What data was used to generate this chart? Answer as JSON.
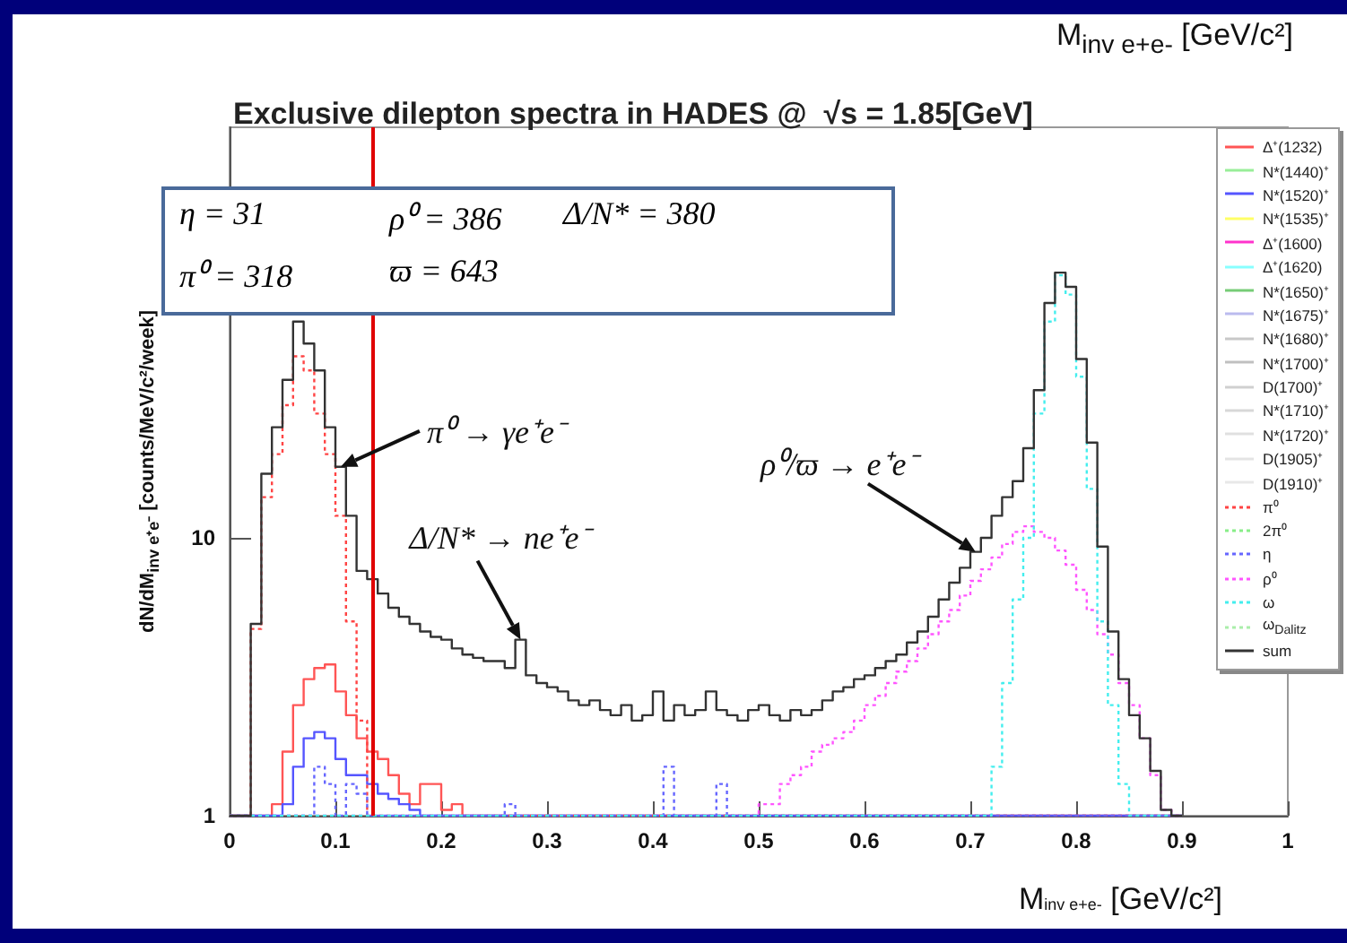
{
  "chart_data": {
    "type": "histogram",
    "title": "Exclusive dilepton spectra in HADES @  √s = 1.85[GeV]",
    "xlabel": "M$_{inv e+e-}$ [GeV/c²]",
    "ylabel": "dN/dM$_{inv e⁺e⁻}$ [counts/MeV/c²/week]",
    "xlim": [
      0,
      1
    ],
    "xticks": [
      0,
      0.1,
      0.2,
      0.3,
      0.4,
      0.5,
      0.6,
      0.7,
      0.8,
      0.9,
      1
    ],
    "ylim": [
      1,
      300
    ],
    "yticks": [
      1,
      10
    ],
    "log": "y",
    "grid": false,
    "legend": "right",
    "marker": "none",
    "bins": [
      0,
      0.01,
      0.02,
      0.03,
      0.04,
      0.05,
      0.06,
      0.07,
      0.08,
      0.09,
      0.1,
      0.11,
      0.12,
      0.13,
      0.14,
      0.15,
      0.16,
      0.17,
      0.18,
      0.19,
      0.2,
      0.21,
      0.22,
      0.23,
      0.24,
      0.25,
      0.26,
      0.27,
      0.28,
      0.29,
      0.3,
      0.31,
      0.32,
      0.33,
      0.34,
      0.35,
      0.36,
      0.37,
      0.38,
      0.39,
      0.4,
      0.41,
      0.42,
      0.43,
      0.44,
      0.45,
      0.46,
      0.47,
      0.48,
      0.49,
      0.5,
      0.51,
      0.52,
      0.53,
      0.54,
      0.55,
      0.56,
      0.57,
      0.58,
      0.59,
      0.6,
      0.61,
      0.62,
      0.63,
      0.64,
      0.65,
      0.66,
      0.67,
      0.68,
      0.69,
      0.7,
      0.71,
      0.72,
      0.73,
      0.74,
      0.75,
      0.76,
      0.77,
      0.78,
      0.79,
      0.8,
      0.81,
      0.82,
      0.83,
      0.84,
      0.85,
      0.86,
      0.87,
      0.88,
      0.89,
      0.9
    ],
    "ref_lines": [
      {
        "axis": "x",
        "value": 0.135,
        "color": "#e00000"
      }
    ],
    "annotations": [
      "η = 31",
      "ρ⁰ = 386",
      "Δ/N* = 380",
      "π⁰ = 318",
      "ϖ = 643",
      "M$_{inv e+e-}$ [GeV/c²]",
      {
        "text": "π⁰ → γe⁺e⁻",
        "x": 0.105,
        "y": 18
      },
      {
        "text": "Δ/N* → ne⁺e⁻",
        "x": 0.275,
        "y": 4.3
      },
      {
        "text": "ρ⁰/ϖ → e⁺e⁻",
        "x": 0.705,
        "y": 8.9
      }
    ],
    "series": [
      {
        "name": "Δ⁺(1232)",
        "color": "#ff5555",
        "line_style": "solid",
        "values": [
          null,
          null,
          null,
          null,
          1.1,
          1.7,
          2.5,
          3.1,
          3.4,
          3.5,
          2.8,
          2.3,
          1.9,
          1.7,
          1.6,
          1.4,
          1.2,
          1.1,
          1.3,
          1.3,
          1.05,
          1.1,
          null,
          null,
          null,
          null,
          null,
          null,
          null,
          null,
          null,
          null,
          null,
          null,
          null,
          null,
          null,
          null,
          null,
          null,
          null,
          null,
          null,
          null,
          null,
          null,
          null,
          null,
          null,
          null,
          null,
          null,
          null,
          null,
          null,
          null,
          null,
          null,
          null,
          null,
          null,
          null,
          null,
          null,
          null,
          null,
          null,
          null,
          null,
          null,
          null,
          null,
          null,
          null,
          null,
          null,
          null,
          null,
          null,
          null,
          null,
          null,
          null,
          null,
          null,
          null,
          null,
          null,
          null,
          null
        ]
      },
      {
        "name": "N*(1440)⁺",
        "color": "#99ee99",
        "line_style": "solid",
        "type": "line"
      },
      {
        "name": "N*(1520)⁺",
        "color": "#5555ff",
        "line_style": "solid",
        "values": [
          null,
          null,
          null,
          null,
          null,
          1.1,
          1.5,
          1.9,
          2.0,
          1.9,
          1.6,
          1.4,
          1.4,
          1.3,
          1.2,
          1.15,
          1.1,
          1.05,
          null,
          null,
          null,
          null,
          null,
          null,
          null,
          null,
          null,
          null,
          null,
          null,
          null,
          null,
          null,
          null,
          null,
          null,
          null,
          null,
          null,
          null,
          null,
          null,
          null,
          null,
          null,
          null,
          null,
          null,
          null,
          null,
          null,
          null,
          null,
          null,
          null,
          null,
          null,
          null,
          null,
          null,
          null,
          null,
          null,
          null,
          null,
          null,
          null,
          null,
          null,
          null,
          null,
          null,
          null,
          null,
          null,
          null,
          null,
          null,
          null,
          null,
          null,
          null,
          null,
          null,
          null,
          null,
          null,
          null,
          null,
          null
        ]
      },
      {
        "name": "N*(1535)⁺",
        "color": "#ffff66",
        "line_style": "solid",
        "type": "line"
      },
      {
        "name": "Δ⁺(1600)",
        "color": "#ff33cc",
        "line_style": "solid",
        "type": "line"
      },
      {
        "name": "Δ⁺(1620)",
        "color": "#88ffff",
        "line_style": "solid",
        "type": "line"
      },
      {
        "name": "N*(1650)⁺",
        "color": "#77cc77",
        "line_style": "solid",
        "type": "line"
      },
      {
        "name": "N*(1675)⁺",
        "color": "#bbbbee",
        "line_style": "solid",
        "type": "line"
      },
      {
        "name": "N*(1680)⁺",
        "color": "#c8c8c8",
        "line_style": "solid",
        "type": "line"
      },
      {
        "name": "N*(1700)⁺",
        "color": "#c0c0c0",
        "line_style": "solid",
        "type": "line"
      },
      {
        "name": "D(1700)⁺",
        "color": "#d0d0d0",
        "line_style": "solid",
        "type": "line"
      },
      {
        "name": "N*(1710)⁺",
        "color": "#d8d8d8",
        "line_style": "solid",
        "type": "line"
      },
      {
        "name": "N*(1720)⁺",
        "color": "#e0e0e0",
        "line_style": "solid",
        "type": "line"
      },
      {
        "name": "D(1905)⁺",
        "color": "#e4e4e4",
        "line_style": "solid",
        "type": "line"
      },
      {
        "name": "D(1910)⁺",
        "color": "#e8e8e8",
        "line_style": "solid",
        "type": "line"
      },
      {
        "name": "π⁰",
        "color": "#ff4444",
        "line_style": "dotted",
        "values": [
          null,
          null,
          4.7,
          14,
          20,
          30,
          45,
          40,
          28,
          20,
          12,
          5,
          2.2,
          null,
          null,
          null,
          null,
          null,
          null,
          null,
          null,
          null,
          null,
          null,
          null,
          null,
          null,
          null,
          null,
          null,
          null,
          null,
          null,
          null,
          null,
          null,
          null,
          null,
          null,
          null,
          null,
          null,
          null,
          null,
          null,
          null,
          null,
          null,
          null,
          null,
          null,
          null,
          null,
          null,
          null,
          null,
          null,
          null,
          null,
          null,
          null,
          null,
          null,
          null,
          null,
          null,
          null,
          null,
          null,
          null,
          null,
          null,
          null,
          null,
          null,
          null,
          null,
          null,
          null,
          null,
          null,
          null,
          null,
          null,
          null,
          null,
          null,
          null,
          null,
          null
        ]
      },
      {
        "name": "2π⁰",
        "color": "#88ee88",
        "line_style": "dotted",
        "type": "line"
      },
      {
        "name": "η",
        "color": "#6666ff",
        "line_style": "dotted",
        "values": [
          null,
          null,
          null,
          null,
          null,
          null,
          null,
          null,
          1.5,
          1.3,
          null,
          1.3,
          1.2,
          null,
          null,
          null,
          null,
          null,
          null,
          null,
          null,
          null,
          null,
          null,
          null,
          null,
          1.1,
          null,
          null,
          null,
          null,
          null,
          null,
          null,
          null,
          null,
          null,
          null,
          null,
          null,
          null,
          1.5,
          null,
          null,
          null,
          null,
          1.3,
          null,
          null,
          null,
          null,
          null,
          null,
          null,
          null,
          null,
          null,
          null,
          null,
          null,
          null,
          null,
          null,
          null,
          null,
          null,
          null,
          null,
          null,
          null,
          null,
          null,
          null,
          null,
          null,
          null,
          null,
          null,
          null,
          null,
          null,
          null,
          null,
          null,
          null,
          null,
          null,
          null,
          null,
          null
        ]
      },
      {
        "name": "ρ⁰",
        "color": "#ff55ff",
        "line_style": "dotted",
        "values": [
          null,
          null,
          null,
          null,
          null,
          null,
          null,
          null,
          null,
          null,
          null,
          null,
          null,
          null,
          null,
          null,
          null,
          null,
          null,
          null,
          null,
          null,
          null,
          null,
          null,
          null,
          null,
          null,
          null,
          null,
          null,
          null,
          null,
          null,
          null,
          null,
          null,
          null,
          null,
          null,
          null,
          null,
          null,
          null,
          null,
          null,
          null,
          null,
          null,
          1.0,
          1.1,
          1.1,
          1.3,
          1.4,
          1.5,
          1.7,
          1.8,
          1.9,
          2.0,
          2.2,
          2.5,
          2.7,
          3.0,
          3.3,
          3.6,
          4.0,
          4.5,
          5.0,
          5.5,
          6.2,
          7.0,
          7.7,
          8.5,
          9.5,
          10.5,
          11,
          10.5,
          10,
          9,
          8,
          6.5,
          5.5,
          4.5,
          3.8,
          3.0,
          2.5,
          1.9,
          1.4,
          1.05,
          null
        ]
      },
      {
        "name": "ω",
        "color": "#44eeee",
        "line_style": "dotted",
        "values": [
          null,
          null,
          null,
          null,
          null,
          null,
          null,
          null,
          null,
          null,
          null,
          null,
          null,
          null,
          null,
          null,
          null,
          null,
          null,
          null,
          null,
          null,
          null,
          null,
          null,
          null,
          null,
          null,
          null,
          null,
          null,
          null,
          null,
          null,
          null,
          null,
          null,
          null,
          null,
          null,
          null,
          null,
          null,
          null,
          null,
          null,
          null,
          null,
          null,
          null,
          null,
          null,
          null,
          null,
          null,
          null,
          null,
          null,
          null,
          null,
          null,
          null,
          null,
          null,
          null,
          null,
          null,
          null,
          null,
          null,
          null,
          1.0,
          1.5,
          3,
          6,
          10,
          28,
          60,
          88,
          75,
          38,
          15,
          5,
          2.5,
          1.3,
          null,
          null,
          null,
          null,
          null
        ]
      },
      {
        "name": "ω$_{Dalitz}$",
        "color": "#aaeeaa",
        "line_style": "dotted",
        "type": "line"
      },
      {
        "name": "sum",
        "color": "#333333",
        "line_style": "solid",
        "values": [
          null,
          null,
          4.9,
          17,
          25,
          37,
          60,
          50,
          40,
          25,
          18,
          12,
          7.6,
          7.1,
          6.3,
          5.6,
          5.2,
          4.9,
          4.6,
          4.4,
          4.3,
          4.0,
          3.8,
          3.7,
          3.6,
          3.6,
          3.4,
          4.3,
          3.2,
          3.0,
          2.9,
          2.8,
          2.6,
          2.5,
          2.6,
          2.4,
          2.3,
          2.5,
          2.2,
          2.3,
          2.8,
          2.2,
          2.5,
          2.3,
          2.4,
          2.8,
          2.4,
          2.3,
          2.2,
          2.4,
          2.5,
          2.3,
          2.2,
          2.4,
          2.3,
          2.4,
          2.6,
          2.8,
          2.9,
          3.1,
          3.2,
          3.4,
          3.6,
          3.8,
          4.2,
          4.6,
          5.2,
          6.0,
          6.9,
          7.8,
          8.9,
          10,
          12,
          14,
          16,
          21,
          34,
          70,
          90,
          80,
          44,
          22,
          9.3,
          4.6,
          3.1,
          2.3,
          1.9,
          1.45,
          1.05,
          null
        ]
      }
    ]
  }
}
